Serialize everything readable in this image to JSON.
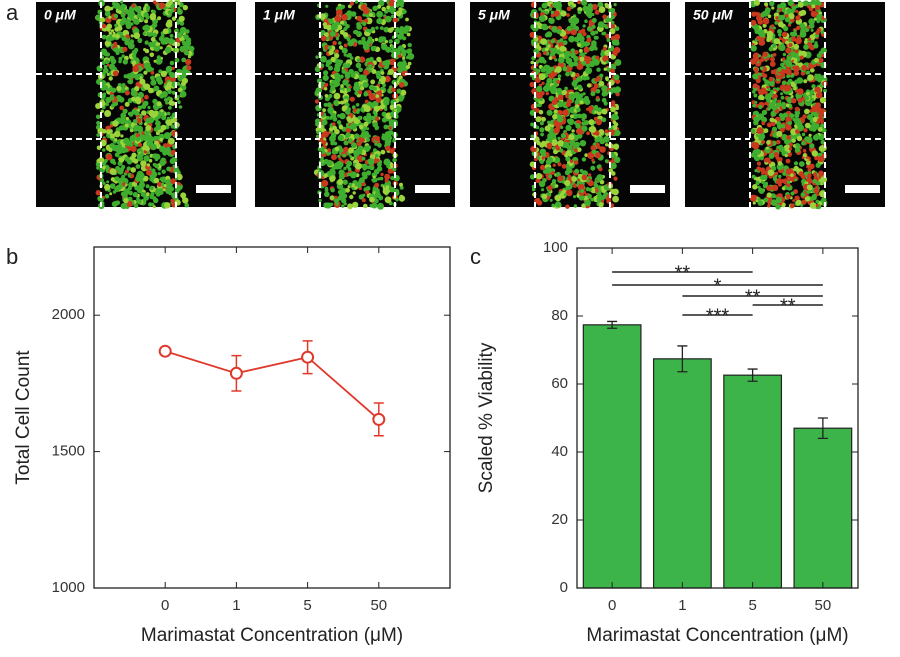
{
  "panel_a": {
    "label": "a",
    "images": [
      {
        "label": "0 μM"
      },
      {
        "label": "1 μM"
      },
      {
        "label": "5 μM"
      },
      {
        "label": "50 μM"
      }
    ]
  },
  "chart_data": [
    {
      "type": "line",
      "panel_label": "b",
      "categories": [
        "0",
        "1",
        "5",
        "50"
      ],
      "values": [
        1868,
        1787,
        1846,
        1618
      ],
      "errors": [
        8,
        65,
        60,
        60
      ],
      "color": "#e0392b",
      "ylim": [
        1000,
        2250
      ],
      "yticks": [
        1000,
        1500,
        2000
      ],
      "xlabel": "Marimastat Concentration (μM)",
      "ylabel": "Total Cell Count"
    },
    {
      "type": "bar",
      "panel_label": "c",
      "categories": [
        "0",
        "1",
        "5",
        "50"
      ],
      "values": [
        77.4,
        67.4,
        62.6,
        47
      ],
      "errors": [
        1,
        3.8,
        1.8,
        3
      ],
      "color": "#3cb44a",
      "ylim": [
        0,
        100
      ],
      "yticks": [
        0,
        20,
        40,
        60,
        80,
        100
      ],
      "xlabel": "Marimastat Concentration (μM)",
      "ylabel": "Scaled % Viability",
      "significance": [
        {
          "from": "0",
          "to": "5",
          "label": "**"
        },
        {
          "from": "0",
          "to": "50",
          "label": "*"
        },
        {
          "from": "1",
          "to": "50",
          "label": "**"
        },
        {
          "from": "5",
          "to": "50",
          "label": "**"
        },
        {
          "from": "1",
          "to": "5",
          "label": "***"
        }
      ]
    }
  ]
}
